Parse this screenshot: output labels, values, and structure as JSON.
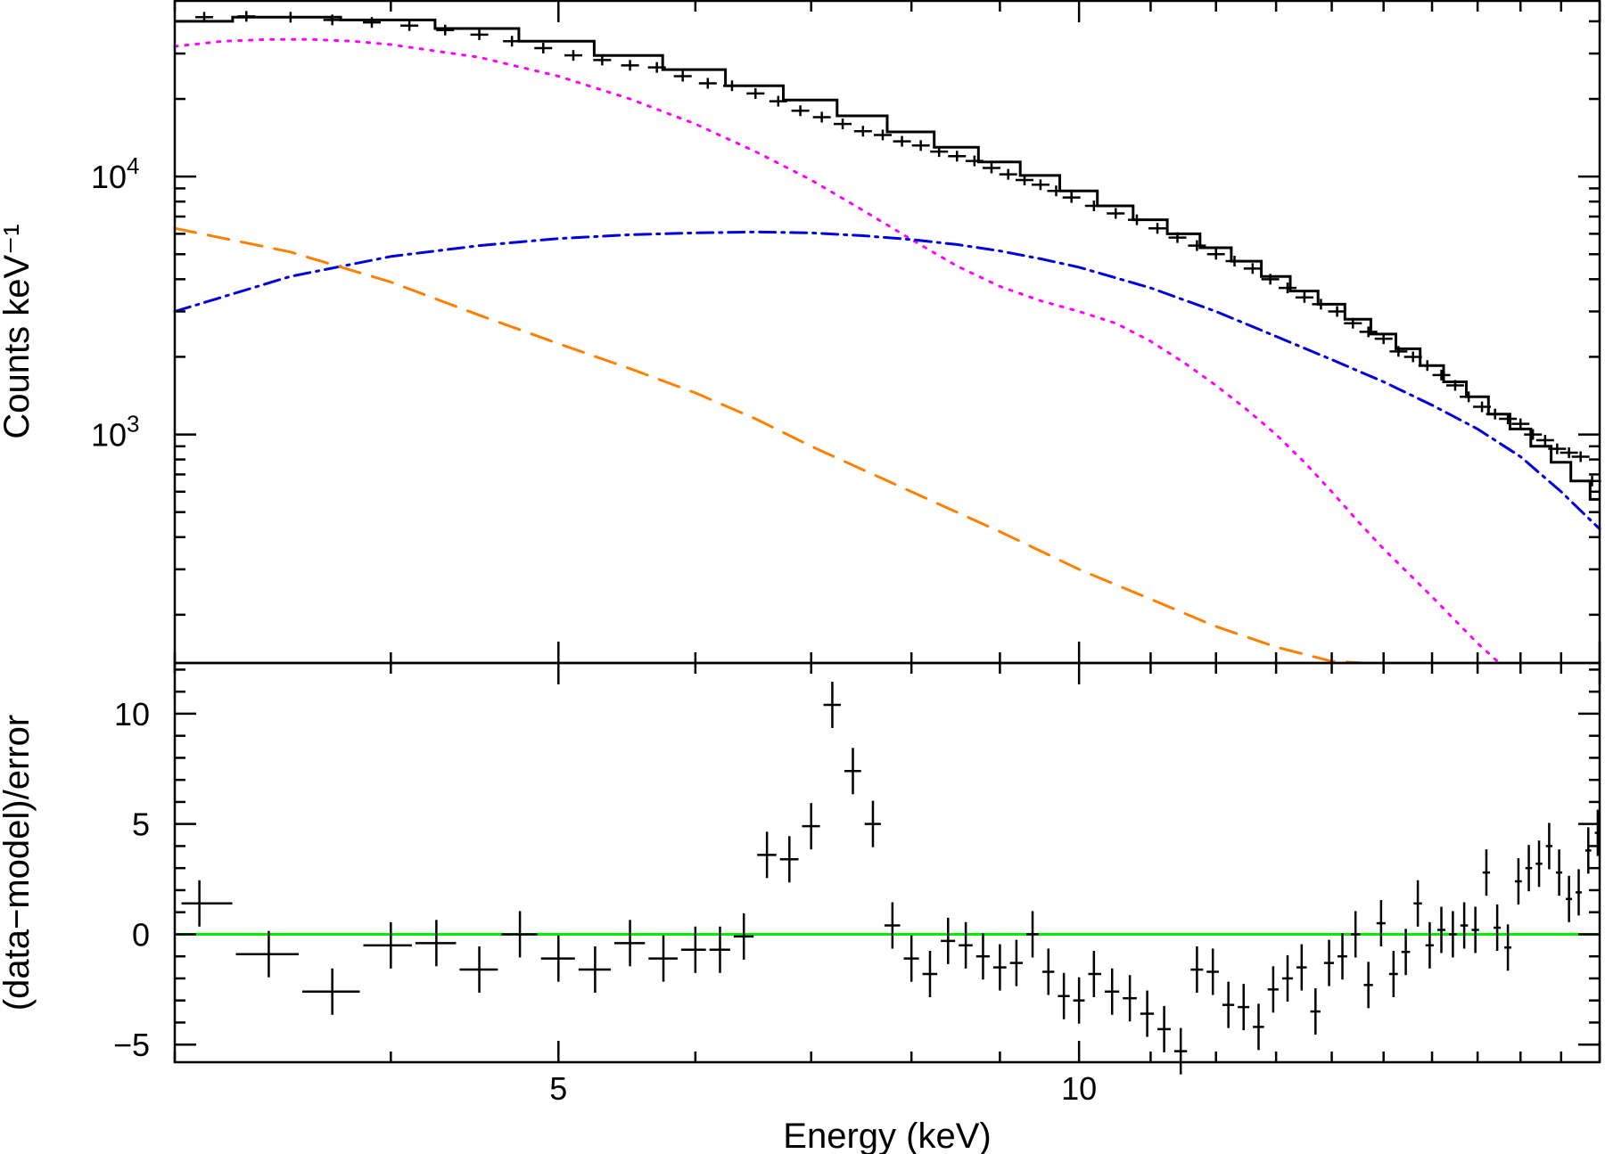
{
  "chart_data": [
    {
      "panel": "top",
      "type": "line",
      "xscale": "log",
      "yscale": "log",
      "xlim": [
        3.0,
        20.0
      ],
      "ylim": [
        130,
        48000
      ],
      "ylabel": "Counts keV⁻¹",
      "yticks": [
        {
          "value": 1000,
          "base": "10",
          "exp": "3"
        },
        {
          "value": 10000,
          "base": "10",
          "exp": "4"
        }
      ],
      "data_points": {
        "x": [
          3.12,
          3.3,
          3.5,
          3.7,
          3.9,
          4.1,
          4.3,
          4.5,
          4.7,
          4.9,
          5.1,
          5.3,
          5.5,
          5.7,
          5.9,
          6.1,
          6.3,
          6.5,
          6.7,
          6.9,
          7.1,
          7.3,
          7.5,
          7.7,
          7.9,
          8.1,
          8.3,
          8.5,
          8.7,
          8.9,
          9.1,
          9.3,
          9.5,
          9.7,
          9.9,
          10.2,
          10.5,
          10.8,
          11.1,
          11.4,
          11.7,
          12.0,
          12.3,
          12.6,
          12.9,
          13.2,
          13.5,
          13.8,
          14.1,
          14.4,
          14.7,
          15.0,
          15.3,
          15.6,
          15.9,
          16.2,
          16.5,
          16.8,
          17.1,
          17.4,
          17.7,
          18.0,
          18.3,
          18.6,
          18.9,
          19.2,
          19.5,
          19.8
        ],
        "y": [
          41500,
          41800,
          41500,
          40500,
          39600,
          38500,
          37000,
          35500,
          33500,
          31500,
          29500,
          28300,
          27000,
          26500,
          24500,
          23000,
          22500,
          21000,
          19600,
          18000,
          17000,
          16000,
          15000,
          14500,
          13700,
          13200,
          12500,
          12000,
          11500,
          10800,
          10200,
          9700,
          9300,
          8800,
          8300,
          7700,
          7200,
          6800,
          6300,
          5800,
          5400,
          5000,
          4700,
          4400,
          4000,
          3700,
          3400,
          3200,
          3000,
          2700,
          2500,
          2350,
          2100,
          2000,
          1850,
          1700,
          1550,
          1400,
          1280,
          1200,
          1150,
          1100,
          1000,
          950,
          880,
          850,
          820,
          660
        ]
      },
      "model_total": {
        "x": [
          3.0,
          3.5,
          4.0,
          4.5,
          5.0,
          5.5,
          6.0,
          6.5,
          7.0,
          7.5,
          8.0,
          8.5,
          9.0,
          9.5,
          10.0,
          10.5,
          11.0,
          11.5,
          12.0,
          12.5,
          13.0,
          13.5,
          14.0,
          14.5,
          15.0,
          15.5,
          16.0,
          16.5,
          17.0,
          17.5,
          18.0,
          18.5,
          19.0,
          19.5,
          20.0
        ],
        "y": [
          40000,
          41500,
          40500,
          37500,
          33500,
          29500,
          26000,
          22500,
          19800,
          17200,
          14900,
          13000,
          11400,
          10100,
          8800,
          7700,
          6800,
          6000,
          5300,
          4700,
          4100,
          3600,
          3200,
          2800,
          2450,
          2150,
          1850,
          1600,
          1400,
          1200,
          1050,
          900,
          780,
          660,
          560
        ]
      },
      "series": [
        {
          "color": "#ff00ff",
          "style": "dotted",
          "x": [
            3.0,
            3.2,
            3.4,
            3.6,
            3.8,
            4.0,
            4.5,
            5.0,
            5.5,
            6.0,
            6.5,
            7.0,
            7.5,
            8.0,
            8.5,
            9.0,
            9.5,
            10.0,
            10.5,
            11.0,
            11.5,
            12.0,
            12.5,
            13.0,
            13.5,
            14.0,
            14.5,
            15.0,
            15.5,
            16.0,
            16.5,
            17.0,
            17.5
          ],
          "y": [
            32000,
            33500,
            34000,
            34000,
            33500,
            32500,
            29000,
            24500,
            20000,
            16000,
            12500,
            9700,
            7400,
            5700,
            4500,
            3750,
            3300,
            3000,
            2700,
            2300,
            1900,
            1550,
            1250,
            1000,
            780,
            600,
            460,
            360,
            290,
            235,
            190,
            155,
            130
          ]
        },
        {
          "color": "#0000e0",
          "style": "dashdot",
          "x": [
            3.0,
            3.5,
            4.0,
            4.5,
            5.0,
            5.5,
            6.0,
            6.5,
            7.0,
            7.5,
            8.0,
            8.5,
            9.0,
            9.5,
            10.0,
            11.0,
            12.0,
            13.0,
            14.0,
            15.0,
            16.0,
            17.0,
            18.0,
            19.0,
            20.0
          ],
          "y": [
            3000,
            4100,
            4900,
            5400,
            5750,
            5950,
            6050,
            6100,
            6050,
            5900,
            5700,
            5450,
            5150,
            4800,
            4450,
            3700,
            3000,
            2400,
            1950,
            1600,
            1300,
            1050,
            820,
            600,
            430
          ]
        },
        {
          "color": "#ff8000",
          "style": "dashed",
          "x": [
            3.0,
            3.5,
            4.0,
            4.5,
            5.0,
            5.5,
            6.0,
            6.5,
            7.0,
            8.0,
            9.0,
            10.0,
            11.0,
            12.0,
            13.0,
            14.0,
            14.6
          ],
          "y": [
            6300,
            5100,
            3900,
            2900,
            2250,
            1800,
            1450,
            1150,
            900,
            600,
            420,
            300,
            230,
            180,
            150,
            132,
            130
          ]
        }
      ]
    },
    {
      "panel": "bottom",
      "type": "scatter",
      "xscale": "log",
      "xlim": [
        3.0,
        20.0
      ],
      "ylim": [
        -5.8,
        12.3
      ],
      "xlabel": "Energy (keV)",
      "ylabel": "(data−model)/error",
      "xticks": [
        {
          "value": 5,
          "label": "5"
        },
        {
          "value": 10,
          "label": "10"
        }
      ],
      "yticks": [
        {
          "value": -5,
          "label": "−5"
        },
        {
          "value": 0,
          "label": "0"
        },
        {
          "value": 5,
          "label": "5"
        },
        {
          "value": 10,
          "label": "10"
        }
      ],
      "zero_line_color": "#00ee00",
      "points": {
        "x": [
          3.1,
          3.4,
          3.7,
          4.0,
          4.25,
          4.5,
          4.75,
          5.0,
          5.25,
          5.5,
          5.75,
          6.0,
          6.2,
          6.4,
          6.6,
          6.8,
          7.0,
          7.2,
          7.4,
          7.6,
          7.8,
          8.0,
          8.2,
          8.4,
          8.6,
          8.8,
          9.0,
          9.2,
          9.4,
          9.6,
          9.8,
          10.0,
          10.2,
          10.45,
          10.7,
          10.95,
          11.2,
          11.45,
          11.7,
          11.95,
          12.2,
          12.45,
          12.7,
          12.95,
          13.2,
          13.45,
          13.7,
          13.95,
          14.2,
          14.45,
          14.7,
          14.95,
          15.2,
          15.45,
          15.7,
          15.95,
          16.2,
          16.45,
          16.7,
          16.95,
          17.2,
          17.45,
          17.7,
          17.95,
          18.2,
          18.45,
          18.7,
          18.95,
          19.2,
          19.45,
          19.7,
          19.95
        ],
        "y": [
          1.4,
          -0.9,
          -2.6,
          -0.5,
          -0.4,
          -1.6,
          0.0,
          -1.1,
          -1.6,
          -0.4,
          -1.1,
          -0.7,
          -0.7,
          -0.1,
          3.6,
          3.4,
          4.9,
          10.4,
          7.4,
          5.0,
          0.4,
          -1.1,
          -1.8,
          -0.3,
          -0.5,
          -1.0,
          -1.5,
          -1.3,
          0.0,
          -1.7,
          -2.8,
          -3.0,
          -1.8,
          -2.6,
          -2.9,
          -3.6,
          -4.3,
          -5.3,
          -1.6,
          -1.7,
          -3.2,
          -3.3,
          -4.2,
          -2.5,
          -2.0,
          -1.5,
          -3.5,
          -1.3,
          -1.0,
          0.0,
          -2.3,
          0.5,
          -1.8,
          -0.8,
          1.4,
          -0.5,
          0.2,
          0.0,
          0.4,
          0.2,
          2.8,
          0.3,
          -0.6,
          2.4,
          3.0,
          3.2,
          4.0,
          2.8,
          1.6,
          1.9,
          3.8,
          4.6
        ]
      }
    }
  ]
}
